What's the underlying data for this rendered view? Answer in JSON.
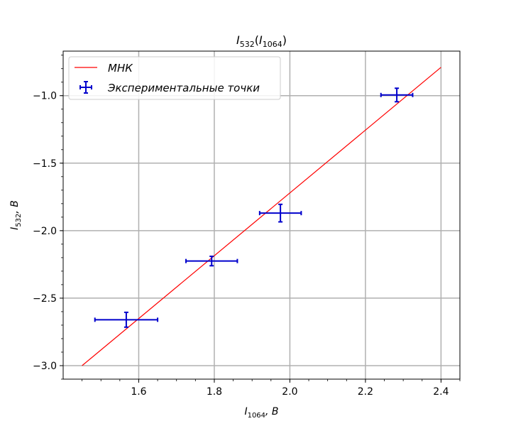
{
  "chart_data": {
    "type": "scatter",
    "title": {
      "base": "I",
      "sub": "532",
      "open": "(",
      "inner_base": "I",
      "inner_sub": "1064",
      "close": ")"
    },
    "xlabel": {
      "base": "I",
      "sub": "1064",
      "unit": ",  B"
    },
    "ylabel": {
      "base": "I",
      "sub": "532",
      "unit": ",  B"
    },
    "xlim": [
      1.4,
      2.45
    ],
    "ylim": [
      -3.1,
      -0.67
    ],
    "x_ticks": [
      {
        "value": 1.6,
        "label": "1.6"
      },
      {
        "value": 1.8,
        "label": "1.8"
      },
      {
        "value": 2.0,
        "label": "2.0"
      },
      {
        "value": 2.2,
        "label": "2.2"
      },
      {
        "value": 2.4,
        "label": "2.4"
      }
    ],
    "y_ticks": [
      {
        "value": -1.0,
        "label": "−1.0"
      },
      {
        "value": -1.5,
        "label": "−1.5"
      },
      {
        "value": -2.0,
        "label": "−2.0"
      },
      {
        "value": -2.5,
        "label": "−2.5"
      },
      {
        "value": -3.0,
        "label": "−3.0"
      }
    ],
    "grid": true,
    "legend_position": "top-left",
    "series": [
      {
        "name": "МНК",
        "kind": "line",
        "color": "#ff0000",
        "x": [
          1.45,
          2.4
        ],
        "y": [
          -3.0,
          -0.79
        ]
      },
      {
        "name": "Экспериментальные точки",
        "kind": "errorbar",
        "color": "#0000cc",
        "points": [
          {
            "x": 1.567,
            "y": -2.66,
            "xerr": 0.083,
            "yerr": 0.055
          },
          {
            "x": 1.793,
            "y": -2.225,
            "xerr": 0.068,
            "yerr": 0.035
          },
          {
            "x": 1.975,
            "y": -1.87,
            "xerr": 0.055,
            "yerr": 0.065
          },
          {
            "x": 2.283,
            "y": -0.995,
            "xerr": 0.042,
            "yerr": 0.05
          }
        ]
      }
    ]
  }
}
